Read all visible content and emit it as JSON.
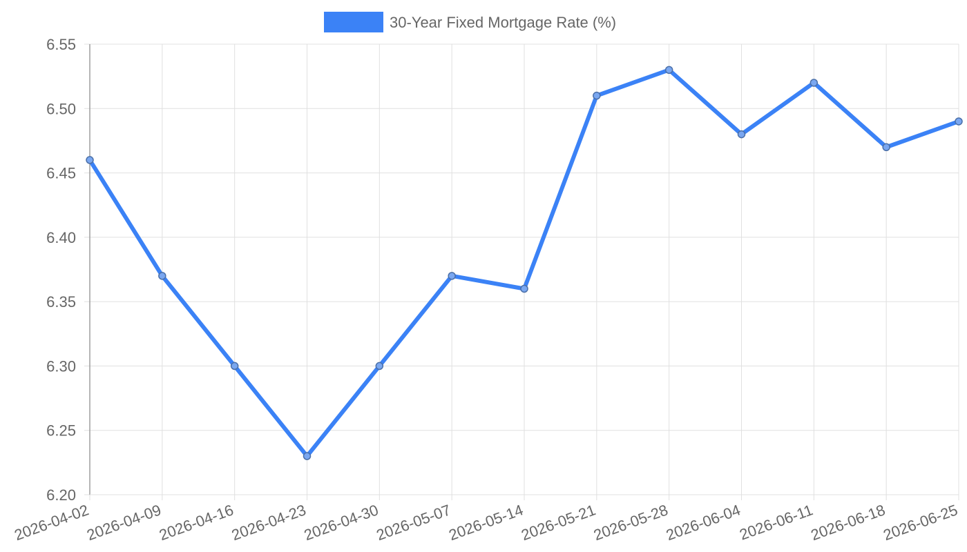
{
  "chart_data": {
    "type": "line",
    "legend": {
      "position": "top-center",
      "entries": [
        {
          "label": "30-Year Fixed Mortgage Rate (%)",
          "color": "#3b82f6"
        }
      ]
    },
    "categories": [
      "2026-04-02",
      "2026-04-09",
      "2026-04-16",
      "2026-04-23",
      "2026-04-30",
      "2026-05-07",
      "2026-05-14",
      "2026-05-21",
      "2026-05-28",
      "2026-06-04",
      "2026-06-11",
      "2026-06-18",
      "2026-06-25"
    ],
    "series": [
      {
        "name": "30-Year Fixed Mortgage Rate (%)",
        "color": "#3b82f6",
        "values": [
          6.46,
          6.37,
          6.3,
          6.23,
          6.3,
          6.37,
          6.36,
          6.51,
          6.53,
          6.48,
          6.52,
          6.47,
          6.49
        ]
      }
    ],
    "ylim": [
      6.2,
      6.55
    ],
    "yticks": [
      "6.20",
      "6.25",
      "6.30",
      "6.35",
      "6.40",
      "6.45",
      "6.50",
      "6.55"
    ],
    "grid": true
  }
}
